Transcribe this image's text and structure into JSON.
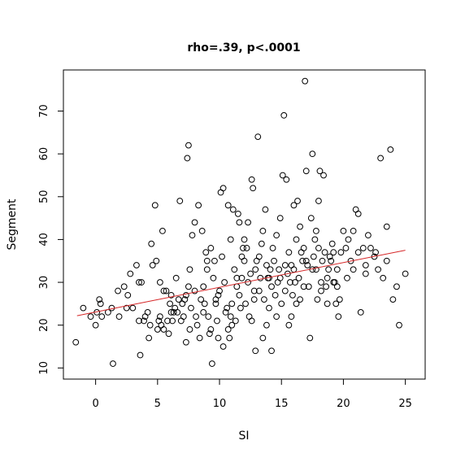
{
  "chart_data": {
    "type": "scatter",
    "title": "rho=.39, p<.0001",
    "xlabel": "SI",
    "ylabel": "Segment",
    "xlim": [
      -2.6,
      26.6
    ],
    "ylim": [
      7.4,
      79.6
    ],
    "xticks": [
      0,
      5,
      10,
      15,
      20,
      25
    ],
    "yticks": [
      10,
      20,
      30,
      40,
      50,
      60,
      70
    ],
    "grid": false,
    "legend": "none",
    "colors": {
      "points": "#000000",
      "fit_line": "#d62728",
      "frame": "#000000"
    },
    "fit_line": {
      "x": [
        -1.5,
        25
      ],
      "y": [
        22.2,
        37.5
      ]
    },
    "points": [
      [
        -1.6,
        16
      ],
      [
        -1.0,
        24
      ],
      [
        -0.4,
        22
      ],
      [
        0.0,
        20
      ],
      [
        0.1,
        23
      ],
      [
        0.3,
        26
      ],
      [
        0.4,
        25
      ],
      [
        0.5,
        22
      ],
      [
        1.0,
        23
      ],
      [
        1.3,
        24
      ],
      [
        1.4,
        11
      ],
      [
        1.8,
        28
      ],
      [
        1.9,
        22
      ],
      [
        2.3,
        29
      ],
      [
        2.5,
        24
      ],
      [
        2.6,
        27
      ],
      [
        2.8,
        32
      ],
      [
        3.0,
        24
      ],
      [
        3.3,
        34
      ],
      [
        3.5,
        30
      ],
      [
        3.5,
        21
      ],
      [
        3.6,
        13
      ],
      [
        3.7,
        30
      ],
      [
        3.9,
        21
      ],
      [
        4.0,
        22
      ],
      [
        4.2,
        23
      ],
      [
        4.3,
        17
      ],
      [
        4.4,
        20
      ],
      [
        4.5,
        39
      ],
      [
        4.6,
        34
      ],
      [
        4.8,
        48
      ],
      [
        4.9,
        35
      ],
      [
        5.0,
        19
      ],
      [
        5.1,
        21
      ],
      [
        5.2,
        22
      ],
      [
        5.3,
        20
      ],
      [
        5.4,
        42
      ],
      [
        5.5,
        28
      ],
      [
        5.5,
        19
      ],
      [
        5.7,
        28
      ],
      [
        5.8,
        21
      ],
      [
        5.9,
        18
      ],
      [
        6.0,
        25
      ],
      [
        6.1,
        27
      ],
      [
        6.2,
        21
      ],
      [
        6.3,
        23
      ],
      [
        6.4,
        24
      ],
      [
        6.6,
        23
      ],
      [
        6.7,
        26
      ],
      [
        6.8,
        49
      ],
      [
        6.9,
        21
      ],
      [
        7.0,
        25
      ],
      [
        7.1,
        22
      ],
      [
        7.2,
        26
      ],
      [
        7.3,
        27
      ],
      [
        7.4,
        59
      ],
      [
        7.5,
        62
      ],
      [
        7.5,
        29
      ],
      [
        7.6,
        19
      ],
      [
        7.7,
        24
      ],
      [
        7.8,
        41
      ],
      [
        8.0,
        44
      ],
      [
        8.1,
        22
      ],
      [
        8.2,
        20
      ],
      [
        8.3,
        48
      ],
      [
        8.4,
        17
      ],
      [
        8.5,
        26
      ],
      [
        8.6,
        42
      ],
      [
        8.7,
        23
      ],
      [
        8.8,
        25
      ],
      [
        8.9,
        37
      ],
      [
        9.0,
        35
      ],
      [
        9.1,
        22
      ],
      [
        9.2,
        18
      ],
      [
        9.3,
        38
      ],
      [
        9.3,
        19
      ],
      [
        9.4,
        11
      ],
      [
        9.5,
        31
      ],
      [
        9.6,
        35
      ],
      [
        9.7,
        25
      ],
      [
        9.8,
        21
      ],
      [
        9.9,
        17
      ],
      [
        10.0,
        28
      ],
      [
        10.1,
        51
      ],
      [
        10.2,
        36
      ],
      [
        10.3,
        52
      ],
      [
        10.4,
        30
      ],
      [
        10.5,
        23
      ],
      [
        10.6,
        24
      ],
      [
        10.7,
        19
      ],
      [
        10.8,
        17
      ],
      [
        10.9,
        22
      ],
      [
        11.0,
        25
      ],
      [
        11.1,
        47
      ],
      [
        11.2,
        33
      ],
      [
        11.3,
        21
      ],
      [
        11.4,
        29
      ],
      [
        11.5,
        46
      ],
      [
        11.6,
        44
      ],
      [
        11.7,
        24
      ],
      [
        11.8,
        31
      ],
      [
        11.9,
        38
      ],
      [
        12.0,
        35
      ],
      [
        12.1,
        25
      ],
      [
        12.2,
        38
      ],
      [
        12.3,
        30
      ],
      [
        12.4,
        22
      ],
      [
        12.5,
        32
      ],
      [
        12.6,
        54
      ],
      [
        12.7,
        52
      ],
      [
        12.8,
        26
      ],
      [
        12.9,
        33
      ],
      [
        13.0,
        35
      ],
      [
        13.1,
        64
      ],
      [
        13.2,
        28
      ],
      [
        13.3,
        31
      ],
      [
        13.4,
        39
      ],
      [
        13.5,
        42
      ],
      [
        13.6,
        26
      ],
      [
        13.7,
        47
      ],
      [
        13.8,
        34
      ],
      [
        13.9,
        31
      ],
      [
        14.0,
        24
      ],
      [
        14.1,
        33
      ],
      [
        14.2,
        29
      ],
      [
        14.3,
        38
      ],
      [
        14.4,
        35
      ],
      [
        14.5,
        27
      ],
      [
        14.6,
        41
      ],
      [
        14.7,
        30
      ],
      [
        14.8,
        33
      ],
      [
        14.9,
        31
      ],
      [
        15.0,
        25
      ],
      [
        15.1,
        55
      ],
      [
        15.2,
        69
      ],
      [
        15.3,
        28
      ],
      [
        15.4,
        54
      ],
      [
        15.5,
        32
      ],
      [
        15.6,
        20
      ],
      [
        15.7,
        30
      ],
      [
        15.8,
        34
      ],
      [
        15.9,
        27
      ],
      [
        16.0,
        48
      ],
      [
        16.1,
        30
      ],
      [
        16.2,
        25
      ],
      [
        16.3,
        49
      ],
      [
        16.4,
        31
      ],
      [
        16.5,
        26
      ],
      [
        16.6,
        37
      ],
      [
        16.7,
        35
      ],
      [
        16.8,
        38
      ],
      [
        16.9,
        77
      ],
      [
        17.0,
        56
      ],
      [
        17.1,
        34
      ],
      [
        17.2,
        29
      ],
      [
        17.3,
        17
      ],
      [
        17.4,
        45
      ],
      [
        17.5,
        60
      ],
      [
        17.6,
        36
      ],
      [
        17.7,
        40
      ],
      [
        17.8,
        33
      ],
      [
        17.9,
        26
      ],
      [
        18.0,
        49
      ],
      [
        18.1,
        56
      ],
      [
        18.2,
        30
      ],
      [
        18.3,
        35
      ],
      [
        18.4,
        55
      ],
      [
        18.5,
        37
      ],
      [
        18.6,
        29
      ],
      [
        18.7,
        31
      ],
      [
        18.8,
        33
      ],
      [
        18.9,
        36
      ],
      [
        19.0,
        35
      ],
      [
        19.1,
        39
      ],
      [
        19.2,
        37
      ],
      [
        19.3,
        30
      ],
      [
        19.4,
        25
      ],
      [
        19.5,
        33
      ],
      [
        19.6,
        22
      ],
      [
        19.7,
        26
      ],
      [
        19.8,
        37
      ],
      [
        20.0,
        42
      ],
      [
        20.2,
        38
      ],
      [
        20.4,
        40
      ],
      [
        20.6,
        35
      ],
      [
        20.8,
        42
      ],
      [
        21.0,
        47
      ],
      [
        21.2,
        46
      ],
      [
        21.4,
        23
      ],
      [
        21.6,
        38
      ],
      [
        21.8,
        34
      ],
      [
        22.0,
        41
      ],
      [
        22.2,
        38
      ],
      [
        22.5,
        36
      ],
      [
        22.8,
        33
      ],
      [
        23.0,
        59
      ],
      [
        23.2,
        31
      ],
      [
        23.5,
        43
      ],
      [
        23.8,
        61
      ],
      [
        24.0,
        26
      ],
      [
        24.3,
        29
      ],
      [
        24.5,
        20
      ],
      [
        25.0,
        32
      ],
      [
        10.7,
        48
      ],
      [
        12.0,
        40
      ],
      [
        9.0,
        33
      ],
      [
        11.0,
        20
      ],
      [
        7.6,
        33
      ],
      [
        6.5,
        31
      ],
      [
        13.5,
        17
      ],
      [
        15.8,
        22
      ],
      [
        16.5,
        43
      ],
      [
        17.8,
        42
      ],
      [
        18.7,
        25
      ],
      [
        14.2,
        14
      ],
      [
        12.6,
        21
      ],
      [
        11.6,
        27
      ],
      [
        10.3,
        15
      ],
      [
        8.7,
        29
      ],
      [
        7.3,
        16
      ],
      [
        6.1,
        23
      ],
      [
        5.2,
        30
      ],
      [
        14.9,
        45
      ],
      [
        15.6,
        37
      ],
      [
        16.8,
        29
      ],
      [
        17.5,
        33
      ],
      [
        18.2,
        28
      ],
      [
        19.2,
        30
      ],
      [
        20.3,
        31
      ],
      [
        21.2,
        37
      ],
      [
        12.9,
        14
      ],
      [
        13.8,
        20
      ],
      [
        9.7,
        26
      ],
      [
        8.0,
        28
      ],
      [
        10.9,
        40
      ],
      [
        11.8,
        36
      ],
      [
        12.3,
        44
      ],
      [
        13.2,
        36
      ],
      [
        14.6,
        22
      ],
      [
        15.3,
        34
      ],
      [
        16.2,
        40
      ],
      [
        17.0,
        35
      ],
      [
        18.0,
        38
      ],
      [
        19.5,
        29
      ],
      [
        20.8,
        33
      ],
      [
        21.8,
        32
      ],
      [
        22.6,
        37
      ],
      [
        23.5,
        35
      ],
      [
        16.0,
        33
      ],
      [
        14.0,
        31
      ],
      [
        12.8,
        28
      ],
      [
        11.4,
        31
      ],
      [
        9.9,
        27
      ]
    ]
  }
}
